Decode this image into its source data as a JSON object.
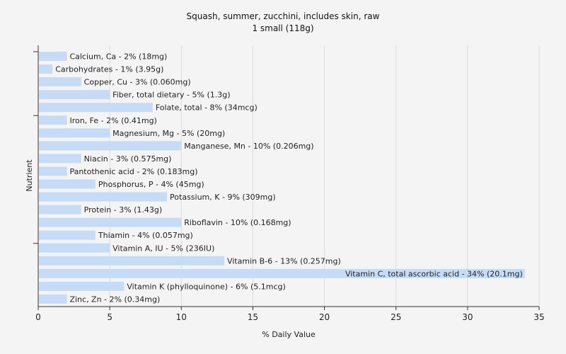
{
  "chart_data": {
    "type": "bar",
    "orientation": "horizontal",
    "title": "Squash, summer, zucchini, includes skin, raw",
    "subtitle": "1 small (118g)",
    "xlabel": "% Daily Value",
    "ylabel": "Nutrient",
    "xlim": [
      0,
      35
    ],
    "xticks": [
      0,
      5,
      10,
      15,
      20,
      25,
      30,
      35
    ],
    "grid": true,
    "bar_color": "#c6dcf6",
    "categories": [
      "Calcium, Ca",
      "Carbohydrates",
      "Copper, Cu",
      "Fiber, total dietary",
      "Folate, total",
      "Iron, Fe",
      "Magnesium, Mg",
      "Manganese, Mn",
      "Niacin",
      "Pantothenic acid",
      "Phosphorus, P",
      "Potassium, K",
      "Protein",
      "Riboflavin",
      "Thiamin",
      "Vitamin A, IU",
      "Vitamin B-6",
      "Vitamin C, total ascorbic acid",
      "Vitamin K (phylloquinone)",
      "Zinc, Zn"
    ],
    "values": [
      2,
      1,
      3,
      5,
      8,
      2,
      5,
      10,
      3,
      2,
      4,
      9,
      3,
      10,
      4,
      5,
      13,
      34,
      6,
      2
    ],
    "labels": [
      "Calcium, Ca - 2% (18mg)",
      "Carbohydrates - 1% (3.95g)",
      "Copper, Cu - 3% (0.060mg)",
      "Fiber, total dietary - 5% (1.3g)",
      "Folate, total - 8% (34mcg)",
      "Iron, Fe - 2% (0.41mg)",
      "Magnesium, Mg - 5% (20mg)",
      "Manganese, Mn - 10% (0.206mg)",
      "Niacin - 3% (0.575mg)",
      "Pantothenic acid - 2% (0.183mg)",
      "Phosphorus, P - 4% (45mg)",
      "Potassium, K - 9% (309mg)",
      "Protein - 3% (1.43g)",
      "Riboflavin - 10% (0.168mg)",
      "Thiamin - 4% (0.057mg)",
      "Vitamin A, IU - 5% (236IU)",
      "Vitamin B-6 - 13% (0.257mg)",
      "Vitamin C, total ascorbic acid - 34% (20.1mg)",
      "Vitamin K (phylloquinone) - 6% (5.1mcg)",
      "Zinc, Zn - 2% (0.34mg)"
    ]
  }
}
